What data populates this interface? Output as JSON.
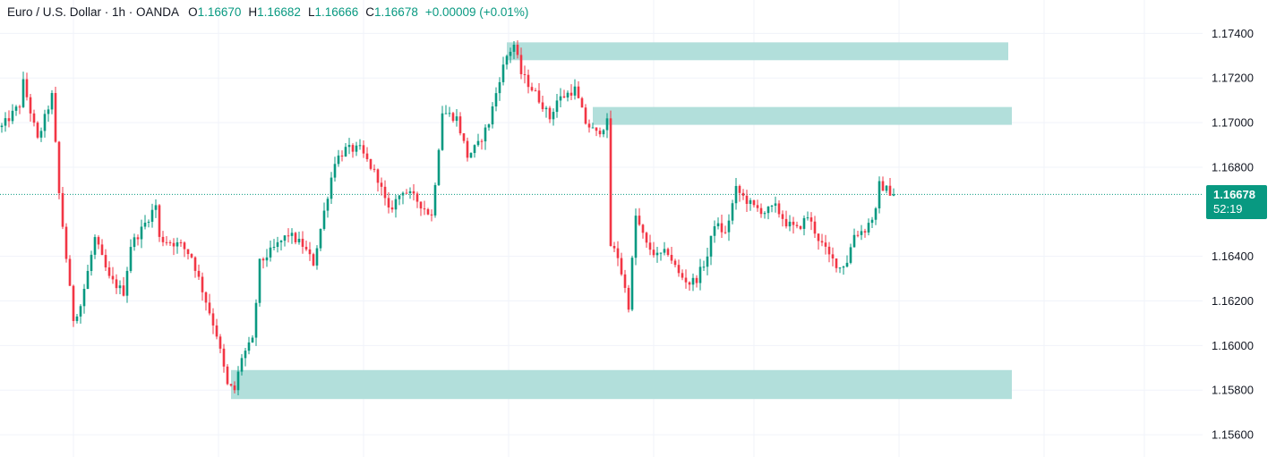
{
  "header": {
    "symbol": "Euro / U.S. Dollar · 1h · OANDA",
    "o_label": "O",
    "o_value": "1.16670",
    "h_label": "H",
    "h_value": "1.16682",
    "l_label": "L",
    "l_value": "1.16666",
    "c_label": "C",
    "c_value": "1.16678",
    "change": "+0.00009 (+0.01%)"
  },
  "last_price": {
    "value": "1.16678",
    "countdown": "52:19"
  },
  "colors": {
    "up": "#089981",
    "down": "#f23645",
    "zone": "#b2dfdb",
    "grid": "#f0f3fa",
    "text": "#131722"
  },
  "chart_data": {
    "type": "candlestick",
    "ylim": [
      1.155,
      1.1755
    ],
    "y_ticks": [
      "1.17400",
      "1.17200",
      "1.17000",
      "1.16800",
      "1.16400",
      "1.16200",
      "1.16000",
      "1.15800",
      "1.15600"
    ],
    "current_price": 1.16678,
    "grid": true,
    "zones": [
      {
        "y0": 1.1728,
        "y1": 1.1736,
        "start_index": 141,
        "end_index": 281
      },
      {
        "y0": 1.1699,
        "y1": 1.1707,
        "start_index": 165,
        "end_index": 282
      },
      {
        "y0": 1.1576,
        "y1": 1.1589,
        "start_index": 64,
        "end_index": 282
      }
    ],
    "anchors": [
      [
        0,
        1.1698
      ],
      [
        5,
        1.1708
      ],
      [
        6,
        1.1718
      ],
      [
        10,
        1.1692
      ],
      [
        14,
        1.1712
      ],
      [
        16,
        1.1668
      ],
      [
        19,
        1.1625
      ],
      [
        20,
        1.1612
      ],
      [
        22,
        1.1618
      ],
      [
        26,
        1.1648
      ],
      [
        30,
        1.163
      ],
      [
        34,
        1.1624
      ],
      [
        36,
        1.1645
      ],
      [
        39,
        1.1652
      ],
      [
        43,
        1.1663
      ],
      [
        44,
        1.1648
      ],
      [
        50,
        1.1645
      ],
      [
        53,
        1.164
      ],
      [
        57,
        1.162
      ],
      [
        60,
        1.1605
      ],
      [
        63,
        1.1582
      ],
      [
        65,
        1.158
      ],
      [
        67,
        1.1595
      ],
      [
        70,
        1.1602
      ],
      [
        72,
        1.1637
      ],
      [
        75,
        1.1642
      ],
      [
        80,
        1.165
      ],
      [
        84,
        1.1645
      ],
      [
        87,
        1.1637
      ],
      [
        90,
        1.166
      ],
      [
        93,
        1.1683
      ],
      [
        96,
        1.1688
      ],
      [
        100,
        1.1688
      ],
      [
        105,
        1.1675
      ],
      [
        108,
        1.166
      ],
      [
        112,
        1.167
      ],
      [
        116,
        1.1665
      ],
      [
        120,
        1.1658
      ],
      [
        123,
        1.1705
      ],
      [
        127,
        1.1702
      ],
      [
        130,
        1.1685
      ],
      [
        133,
        1.169
      ],
      [
        136,
        1.17
      ],
      [
        139,
        1.172
      ],
      [
        141,
        1.173
      ],
      [
        143,
        1.1735
      ],
      [
        145,
        1.1722
      ],
      [
        149,
        1.1713
      ],
      [
        151,
        1.1708
      ],
      [
        153,
        1.1702
      ],
      [
        155,
        1.171
      ],
      [
        158,
        1.1713
      ],
      [
        160,
        1.1715
      ],
      [
        163,
        1.17
      ],
      [
        166,
        1.1695
      ],
      [
        169,
        1.17
      ],
      [
        170,
        1.1645
      ],
      [
        172,
        1.164
      ],
      [
        175,
        1.1618
      ],
      [
        177,
        1.1658
      ],
      [
        180,
        1.1645
      ],
      [
        183,
        1.164
      ],
      [
        186,
        1.1642
      ],
      [
        189,
        1.1632
      ],
      [
        192,
        1.1628
      ],
      [
        194,
        1.163
      ],
      [
        197,
        1.164
      ],
      [
        199,
        1.1655
      ],
      [
        202,
        1.165
      ],
      [
        205,
        1.167
      ],
      [
        208,
        1.1665
      ],
      [
        210,
        1.1662
      ],
      [
        213,
        1.166
      ],
      [
        216,
        1.1662
      ],
      [
        219,
        1.1655
      ],
      [
        222,
        1.1652
      ],
      [
        225,
        1.1658
      ],
      [
        228,
        1.1648
      ],
      [
        231,
        1.164
      ],
      [
        234,
        1.1635
      ],
      [
        236,
        1.1638
      ],
      [
        238,
        1.165
      ],
      [
        241,
        1.1652
      ],
      [
        244,
        1.166
      ],
      [
        245,
        1.1672
      ],
      [
        247,
        1.167
      ],
      [
        249,
        1.1668
      ]
    ]
  }
}
